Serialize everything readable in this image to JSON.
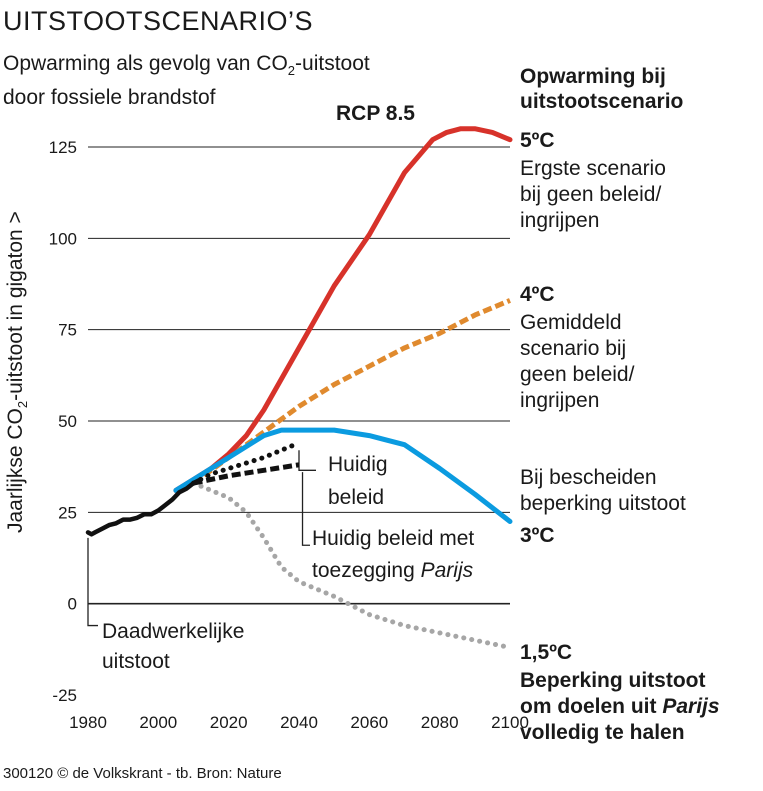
{
  "title": "UITSTOOTSCENARIO’S",
  "subtitle_line1_pre": "Opwarming als gevolg van CO",
  "subtitle_line1_sub": "2",
  "subtitle_line1_post": "-uitstoot",
  "subtitle_line2": "door fossiele brandstof",
  "legend_title_line1": "Opwarming bij",
  "legend_title_line2": "uitstootscenario",
  "footer": "300120 © de Volkskrant - tb. Bron: Nature",
  "colors": {
    "red": "#d7322a",
    "orange": "#e08a2e",
    "blue": "#0b9be0",
    "black": "#111111",
    "gray": "#a6a6a6"
  },
  "scenarios": [
    {
      "temp": "5ºC",
      "lines": [
        "Ergste scenario",
        "bij geen beleid/",
        "ingrijpen"
      ]
    },
    {
      "temp": "4ºC",
      "lines": [
        "Gemiddeld",
        "scenario bij",
        "geen beleid/",
        "ingrijpen"
      ]
    },
    {
      "temp": "3ºC",
      "lines": [
        "Bij bescheiden",
        "beperking uitstoot"
      ]
    },
    {
      "temp": "1,5ºC",
      "lines": [
        "Beperking uitstoot",
        "om doelen uit Parijs",
        "volledig te halen"
      ]
    }
  ],
  "chart_data": {
    "type": "line",
    "title": "UITSTOOTSCENARIO’S",
    "ylabel_pre": "Jaarlijkse CO",
    "ylabel_sub": "2",
    "ylabel_post": "-uitstoot in gigaton >",
    "xlim": [
      1980,
      2100
    ],
    "ylim": [
      -25,
      125
    ],
    "x_ticks": [
      1980,
      2000,
      2020,
      2040,
      2060,
      2080,
      2100
    ],
    "y_ticks": [
      125,
      100,
      75,
      50,
      25,
      0,
      -25
    ],
    "annotations": {
      "rcp": "RCP 8.5",
      "current_policy": [
        "Huidig",
        "beleid"
      ],
      "paris_pledge_pre": "Huidig beleid met",
      "paris_pledge_line2_pre": "toezegging ",
      "paris_pledge_line2_italic": "Parijs",
      "actual": [
        "Daadwerkelijke",
        "uitstoot"
      ]
    },
    "series": [
      {
        "name": "Daadwerkelijke uitstoot",
        "color": "#111111",
        "style": "solid",
        "x": [
          1980,
          1981,
          1982,
          1984,
          1986,
          1988,
          1990,
          1992,
          1994,
          1996,
          1998,
          2000,
          2002,
          2004,
          2006,
          2008,
          2010,
          2012
        ],
        "y": [
          19.5,
          19,
          19.5,
          20.5,
          21.5,
          22,
          23,
          23,
          23.5,
          24.5,
          24.5,
          25.5,
          27,
          28.5,
          30.5,
          31.5,
          33,
          34
        ]
      },
      {
        "name": "RCP 8.5 (5ºC)",
        "color": "#d7322a",
        "style": "solid",
        "x": [
          2005,
          2010,
          2015,
          2020,
          2025,
          2030,
          2040,
          2050,
          2060,
          2070,
          2078,
          2082,
          2086,
          2090,
          2095,
          2100
        ],
        "y": [
          31,
          34,
          37,
          41,
          46,
          53,
          70,
          87,
          101,
          118,
          127,
          129,
          130,
          130,
          129,
          127
        ]
      },
      {
        "name": "Gemiddeld scenario (4ºC)",
        "color": "#e08a2e",
        "style": "dashed",
        "x": [
          2010,
          2020,
          2030,
          2040,
          2050,
          2060,
          2070,
          2080,
          2090,
          2100
        ],
        "y": [
          33,
          40,
          47,
          54,
          60,
          65,
          70,
          74,
          79,
          83
        ]
      },
      {
        "name": "Bescheiden beperking (3ºC)",
        "color": "#0b9be0",
        "style": "solid",
        "x": [
          2005,
          2010,
          2020,
          2030,
          2035,
          2040,
          2050,
          2060,
          2070,
          2080,
          2090,
          2100
        ],
        "y": [
          31,
          34,
          40,
          46,
          47.5,
          47.5,
          47.5,
          46,
          43.5,
          37,
          30,
          22.5
        ]
      },
      {
        "name": "Huidig beleid",
        "color": "#111111",
        "style": "dotted",
        "x": [
          2010,
          2015,
          2020,
          2025,
          2030,
          2035,
          2040
        ],
        "y": [
          33,
          35.5,
          37,
          38.5,
          40,
          42,
          44
        ]
      },
      {
        "name": "Huidig beleid met toezegging Parijs",
        "color": "#111111",
        "style": "dashed",
        "x": [
          2010,
          2020,
          2030,
          2040
        ],
        "y": [
          33,
          35,
          36.5,
          38
        ]
      },
      {
        "name": "Doelen Parijs (1,5ºC)",
        "color": "#a6a6a6",
        "style": "dotted",
        "x": [
          2010,
          2015,
          2020,
          2025,
          2030,
          2035,
          2040,
          2050,
          2060,
          2070,
          2080,
          2090,
          2100
        ],
        "y": [
          33,
          31,
          29,
          25,
          18,
          10,
          6,
          2,
          -3,
          -6,
          -8,
          -10,
          -12
        ]
      }
    ]
  }
}
